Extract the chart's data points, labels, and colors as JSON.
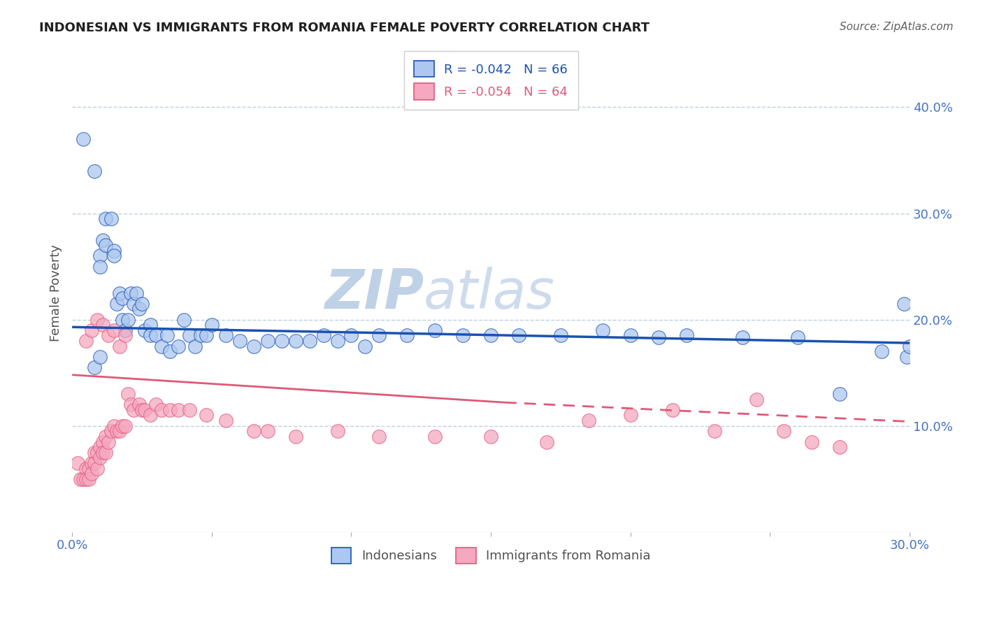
{
  "title": "INDONESIAN VS IMMIGRANTS FROM ROMANIA FEMALE POVERTY CORRELATION CHART",
  "source": "Source: ZipAtlas.com",
  "ylabel": "Female Poverty",
  "xlim": [
    0.0,
    0.3
  ],
  "ylim": [
    0.0,
    0.45
  ],
  "legend_r_blue": "R = -0.042",
  "legend_n_blue": "N = 66",
  "legend_r_pink": "R = -0.054",
  "legend_n_pink": "N = 64",
  "legend_label_blue": "Indonesians",
  "legend_label_pink": "Immigrants from Romania",
  "dot_color_blue": "#adc8f0",
  "dot_color_pink": "#f5a8c0",
  "line_color_blue": "#1a52b0",
  "line_color_pink": "#e05878",
  "background_color": "#ffffff",
  "grid_color": "#c0d0e0",
  "title_color": "#202020",
  "axis_tick_color": "#4472c4",
  "watermark_color": "#dce8f5",
  "blue_line_x0": 0.0,
  "blue_line_y0": 0.193,
  "blue_line_x1": 0.3,
  "blue_line_y1": 0.178,
  "pink_line_solid_x0": 0.0,
  "pink_line_solid_y0": 0.148,
  "pink_line_solid_x1": 0.155,
  "pink_line_solid_y1": 0.122,
  "pink_line_dash_x0": 0.155,
  "pink_line_dash_y0": 0.122,
  "pink_line_dash_x1": 0.3,
  "pink_line_dash_y1": 0.104,
  "indonesians_x": [
    0.004,
    0.008,
    0.01,
    0.01,
    0.011,
    0.012,
    0.012,
    0.014,
    0.015,
    0.015,
    0.016,
    0.017,
    0.018,
    0.018,
    0.019,
    0.02,
    0.021,
    0.022,
    0.023,
    0.024,
    0.025,
    0.026,
    0.028,
    0.028,
    0.03,
    0.032,
    0.034,
    0.035,
    0.038,
    0.04,
    0.042,
    0.044,
    0.046,
    0.048,
    0.05,
    0.055,
    0.06,
    0.065,
    0.07,
    0.075,
    0.08,
    0.085,
    0.09,
    0.095,
    0.1,
    0.105,
    0.11,
    0.12,
    0.13,
    0.14,
    0.15,
    0.16,
    0.175,
    0.19,
    0.2,
    0.21,
    0.22,
    0.24,
    0.26,
    0.275,
    0.29,
    0.298,
    0.299,
    0.3,
    0.008,
    0.01
  ],
  "indonesians_y": [
    0.37,
    0.34,
    0.26,
    0.25,
    0.275,
    0.295,
    0.27,
    0.295,
    0.265,
    0.26,
    0.215,
    0.225,
    0.22,
    0.2,
    0.19,
    0.2,
    0.225,
    0.215,
    0.225,
    0.21,
    0.215,
    0.19,
    0.195,
    0.185,
    0.185,
    0.175,
    0.185,
    0.17,
    0.175,
    0.2,
    0.185,
    0.175,
    0.185,
    0.185,
    0.195,
    0.185,
    0.18,
    0.175,
    0.18,
    0.18,
    0.18,
    0.18,
    0.185,
    0.18,
    0.185,
    0.175,
    0.185,
    0.185,
    0.19,
    0.185,
    0.185,
    0.185,
    0.185,
    0.19,
    0.185,
    0.183,
    0.185,
    0.183,
    0.183,
    0.13,
    0.17,
    0.215,
    0.165,
    0.175,
    0.155,
    0.165
  ],
  "romania_x": [
    0.002,
    0.003,
    0.004,
    0.005,
    0.005,
    0.006,
    0.006,
    0.007,
    0.007,
    0.008,
    0.008,
    0.009,
    0.009,
    0.01,
    0.01,
    0.011,
    0.011,
    0.012,
    0.012,
    0.013,
    0.014,
    0.015,
    0.016,
    0.017,
    0.018,
    0.019,
    0.02,
    0.021,
    0.022,
    0.024,
    0.025,
    0.026,
    0.028,
    0.03,
    0.032,
    0.035,
    0.038,
    0.042,
    0.048,
    0.055,
    0.065,
    0.07,
    0.08,
    0.095,
    0.11,
    0.13,
    0.15,
    0.17,
    0.185,
    0.2,
    0.215,
    0.23,
    0.245,
    0.255,
    0.265,
    0.275,
    0.005,
    0.007,
    0.009,
    0.011,
    0.013,
    0.015,
    0.017,
    0.019
  ],
  "romania_y": [
    0.065,
    0.05,
    0.05,
    0.06,
    0.05,
    0.06,
    0.05,
    0.065,
    0.055,
    0.075,
    0.065,
    0.075,
    0.06,
    0.08,
    0.07,
    0.085,
    0.075,
    0.09,
    0.075,
    0.085,
    0.095,
    0.1,
    0.095,
    0.095,
    0.1,
    0.1,
    0.13,
    0.12,
    0.115,
    0.12,
    0.115,
    0.115,
    0.11,
    0.12,
    0.115,
    0.115,
    0.115,
    0.115,
    0.11,
    0.105,
    0.095,
    0.095,
    0.09,
    0.095,
    0.09,
    0.09,
    0.09,
    0.085,
    0.105,
    0.11,
    0.115,
    0.095,
    0.125,
    0.095,
    0.085,
    0.08,
    0.18,
    0.19,
    0.2,
    0.195,
    0.185,
    0.19,
    0.175,
    0.185
  ]
}
